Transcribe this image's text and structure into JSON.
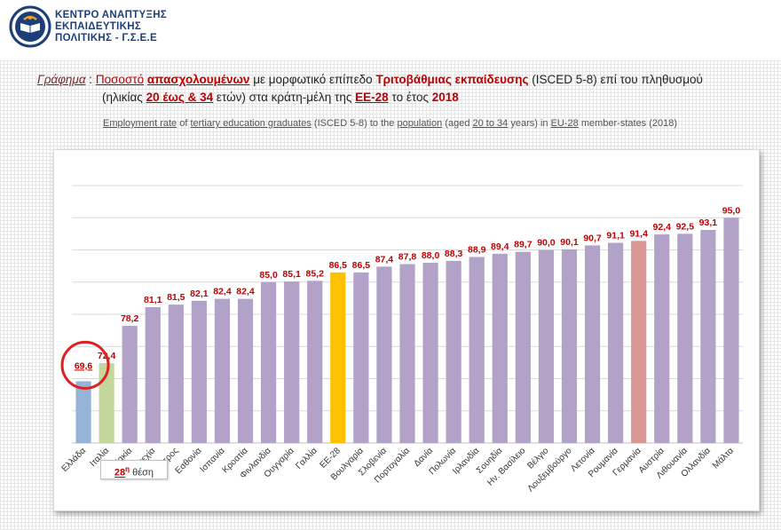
{
  "header": {
    "org_line1": "ΚΕΝΤΡΟ ΑΝΑΠΤΥΞΗΣ",
    "org_line2": "ΕΚΠΑΙΔΕΥΤΙΚΗΣ",
    "org_line3": "ΠΟΛΙΤΙΚΗΣ - Γ.Σ.Ε.Ε"
  },
  "title_gr": {
    "prefix": "Γράφημα",
    "sep": ":",
    "p1": "Ποσοστό",
    "p2": "απασχολουμένων",
    "p3": "με μορφωτικό επίπεδο",
    "p4": "Τριτοβάθμιας εκπαίδευσης",
    "p5": "(ISCED 5-8) επί του πληθυσμού",
    "p6": "(ηλικίας",
    "p7": "20 έως & 34",
    "p8": "ετών) στα κράτη-μέλη της",
    "p9": "ΕΕ-28",
    "p10": "το έτος",
    "p11": "2018"
  },
  "title_en": {
    "e1": "Employment rate",
    "e2": "of",
    "e3": "tertiary education graduates",
    "e4": "(ISCED 5-8) to the",
    "e5": "population",
    "e6": "(aged",
    "e7": "20 to 34",
    "e8": "years) in",
    "e9": "EU-28",
    "e10": "member-states (2018)"
  },
  "rank_callout": {
    "number": "28",
    "suffix": "η",
    "word": "θέση"
  },
  "colors": {
    "default_bar": "#b3a2c7",
    "greece": "#95b3d7",
    "italy": "#c3d69b",
    "eu28": "#ffc000",
    "germany": "#d99694",
    "label": "#c00000",
    "greece_label": "#1f6fae",
    "circle": "#e02020"
  },
  "chart_data": {
    "type": "bar",
    "title": "Employment rate of tertiary education graduates (ISCED 5-8) to the population (aged 20 to 34 years) in EU-28 member-states (2018)",
    "xlabel": "",
    "ylabel": "",
    "ylim": [
      60,
      100
    ],
    "grid": true,
    "categories": [
      "Ελλάδα",
      "Ιταλία",
      "Σλοβακία",
      "Τσεχία",
      "Κύπρος",
      "Εσθονία",
      "Ισπανία",
      "Κροατία",
      "Φινλανδία",
      "Ουγγαρία",
      "Γαλλία",
      "ΕΕ-28",
      "Βουλγαρία",
      "Σλοβενία",
      "Πορτογαλία",
      "Δανία",
      "Πολωνία",
      "Ιρλανδία",
      "Σουηδία",
      "Ην. Βασίλειο",
      "Βέλγιο",
      "Λουξεμβούργο",
      "Λετονία",
      "Ρουμανία",
      "Γερμανία",
      "Αυστρία",
      "Λιθουανία",
      "Ολλανδία",
      "Μάλτα"
    ],
    "values": [
      69.6,
      72.4,
      78.2,
      81.1,
      81.5,
      82.1,
      82.4,
      82.4,
      85.0,
      85.1,
      85.2,
      86.5,
      86.5,
      87.4,
      87.8,
      88.0,
      88.3,
      88.9,
      89.4,
      89.7,
      90.0,
      90.1,
      90.7,
      91.1,
      91.4,
      92.4,
      92.5,
      93.1,
      95.0
    ],
    "labels": [
      "69,6",
      "72,4",
      "78,2",
      "81,1",
      "81,5",
      "82,1",
      "82,4",
      "82,4",
      "85,0",
      "85,1",
      "85,2",
      "86,5",
      "86,5",
      "87,4",
      "87,8",
      "88,0",
      "88,3",
      "88,9",
      "89,4",
      "89,7",
      "90,0",
      "90,1",
      "90,7",
      "91,1",
      "91,4",
      "92,4",
      "92,5",
      "93,1",
      "95,0"
    ],
    "highlight": {
      "0": "greece",
      "1": "italy",
      "11": "eu28",
      "24": "germany"
    }
  }
}
